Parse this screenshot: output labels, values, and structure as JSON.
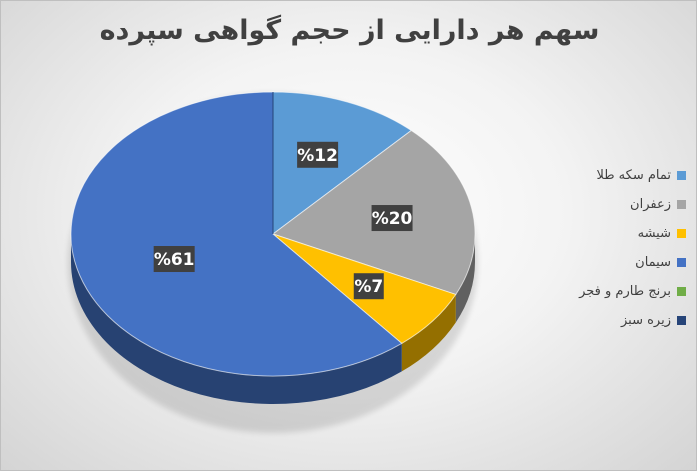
{
  "chart_data": {
    "type": "pie",
    "title": "سهم هر دارایی از حجم گواهی سپرده",
    "categories": [
      "تمام سکه طلا",
      "زعفران",
      "شیشه",
      "سیمان",
      "برنج طارم و فجر",
      "زیره سبز"
    ],
    "values": [
      12,
      20,
      7,
      61,
      0,
      0
    ],
    "data_labels": [
      "%12",
      "%20",
      "%7",
      "%61",
      "",
      ""
    ],
    "colors": [
      "#5b9bd5",
      "#a5a5a5",
      "#ffc000",
      "#4472c4",
      "#70ad47",
      "#264478"
    ],
    "legend_position": "right",
    "three_d": true
  }
}
